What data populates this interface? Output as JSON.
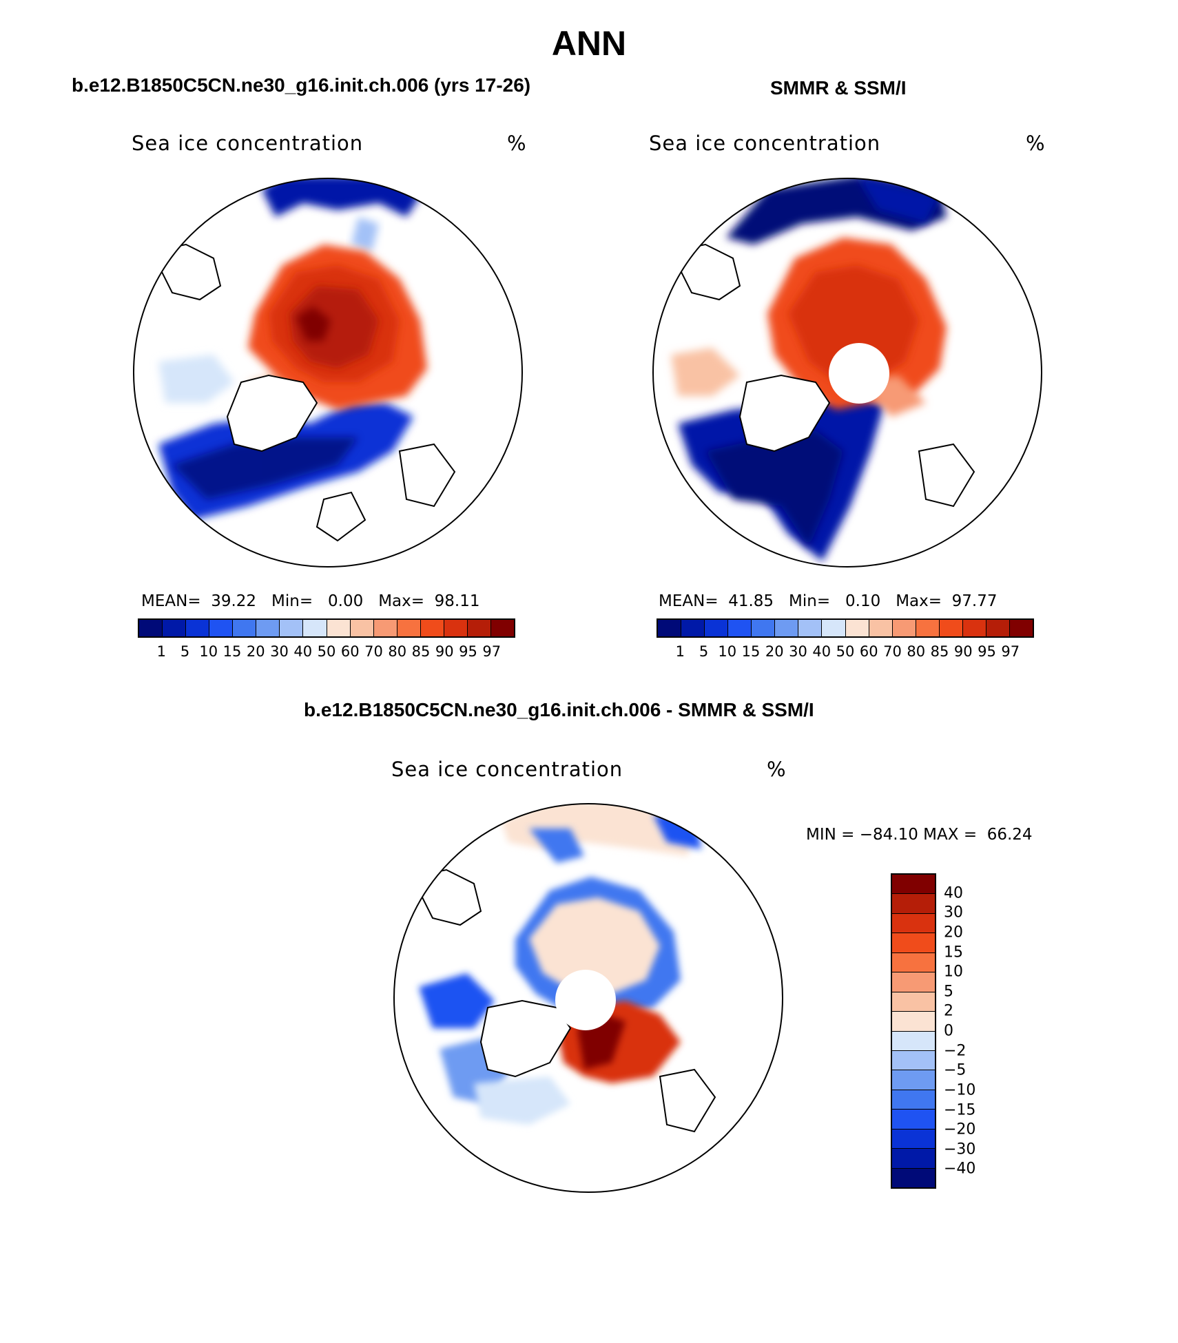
{
  "page_title": "ANN",
  "panels": {
    "model": {
      "title": "b.e12.B1850C5CN.ne30_g16.init.ch.006 (yrs 17-26)",
      "plot_label": "Sea ice concentration",
      "unit": "%",
      "stats": {
        "mean_label": "MEAN=",
        "mean": "39.22",
        "min_label": "Min=",
        "min": "0.00",
        "max_label": "Max=",
        "max": "98.11"
      }
    },
    "obs": {
      "title": "SMMR & SSM/I",
      "plot_label": "Sea ice concentration",
      "unit": "%",
      "stats": {
        "mean_label": "MEAN=",
        "mean": "41.85",
        "min_label": "Min=",
        "min": "0.10",
        "max_label": "Max=",
        "max": "97.77"
      }
    },
    "diff": {
      "title": "b.e12.B1850C5CN.ne30_g16.init.ch.006 - SMMR & SSM/I",
      "plot_label": "Sea ice concentration",
      "unit": "%",
      "stats": {
        "min_label": "MIN =",
        "min": "−84.10",
        "max_label": "MAX =",
        "max": "66.24"
      }
    }
  },
  "colorbar_abs": {
    "levels": [
      "1",
      "5",
      "10",
      "15",
      "20",
      "30",
      "40",
      "50",
      "60",
      "70",
      "80",
      "85",
      "90",
      "95",
      "97"
    ],
    "colors": [
      "#000a78",
      "#0019a8",
      "#0a33d6",
      "#1f53f2",
      "#4077f0",
      "#6e9bf2",
      "#a3c1f7",
      "#d6e6fa",
      "#fbe3d3",
      "#f9c2a4",
      "#f79a74",
      "#f7723f",
      "#f04c1b",
      "#d9320f",
      "#b51e08",
      "#800000"
    ]
  },
  "colorbar_diff": {
    "levels": [
      "40",
      "30",
      "20",
      "15",
      "10",
      "5",
      "2",
      "0",
      "−2",
      "−5",
      "−10",
      "−15",
      "−20",
      "−30",
      "−40"
    ],
    "colors": [
      "#800000",
      "#b51e08",
      "#d9320f",
      "#f04c1b",
      "#f7723f",
      "#f79a74",
      "#f9c2a4",
      "#fbe3d3",
      "#d6e6fa",
      "#a3c1f7",
      "#6e9bf2",
      "#4077f0",
      "#1f53f2",
      "#0a33d6",
      "#0019a8",
      "#000a78"
    ]
  }
}
